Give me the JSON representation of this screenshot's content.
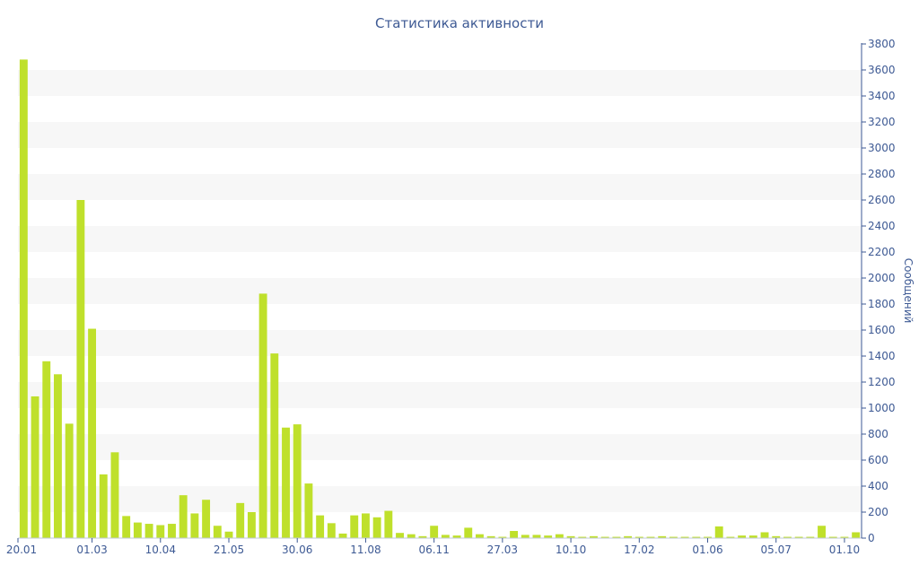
{
  "chart_data": {
    "type": "bar",
    "title": "Статистика активности",
    "xlabel": "",
    "ylabel": "Сообщений",
    "ylim": [
      0,
      3800
    ],
    "ytick_step": 200,
    "y_axis_position": "right",
    "grid": "alternating horizontal bands",
    "legend": "none",
    "bar_color": "#bfe02b",
    "band_color": "#f7f7f7",
    "text_color": "#3e5a94",
    "x_tick_labels": [
      "20.01",
      "01.03",
      "10.04",
      "21.05",
      "30.06",
      "11.08",
      "06.11",
      "27.03",
      "10.10",
      "17.02",
      "01.06",
      "05.07",
      "01.10"
    ],
    "x_tick_bar_index": [
      0,
      6,
      12,
      18,
      24,
      30,
      36,
      42,
      48,
      54,
      60,
      66,
      72
    ],
    "values": [
      3680,
      1090,
      1360,
      1260,
      880,
      2600,
      1610,
      490,
      660,
      170,
      120,
      110,
      100,
      110,
      330,
      190,
      295,
      95,
      50,
      270,
      200,
      1880,
      1420,
      850,
      875,
      420,
      175,
      115,
      35,
      175,
      190,
      160,
      210,
      40,
      30,
      15,
      95,
      25,
      20,
      80,
      30,
      15,
      10,
      55,
      25,
      25,
      20,
      30,
      15,
      10,
      15,
      10,
      10,
      15,
      10,
      10,
      15,
      10,
      10,
      10,
      10,
      90,
      10,
      20,
      20,
      45,
      15,
      10,
      10,
      10,
      95,
      10,
      10,
      45
    ]
  }
}
